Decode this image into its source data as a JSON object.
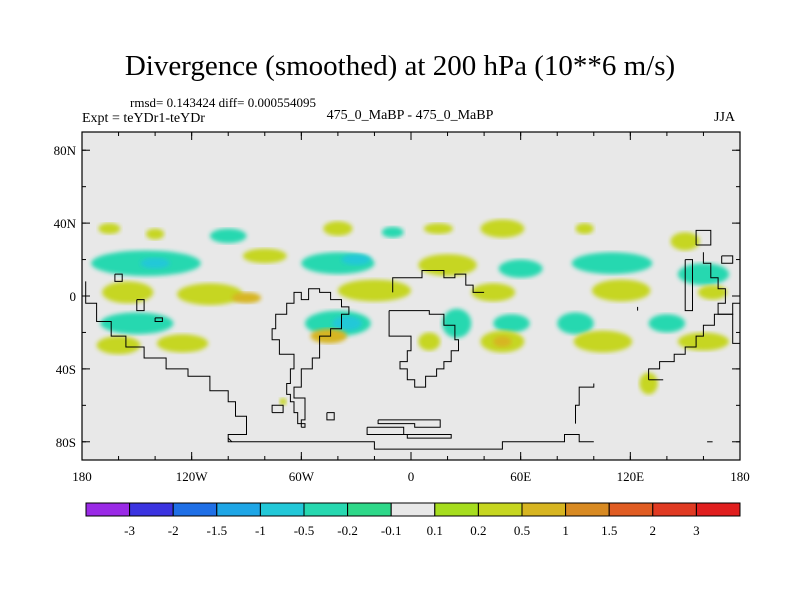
{
  "chart_data": {
    "type": "heatmap",
    "title": "Divergence (smoothed) at 200 hPa (10**6 m/s)",
    "stats": "rmsd= 0.143424  diff= 0.000554095",
    "experiment": "Expt = teYDr1-teYDr",
    "cases": "475_0_MaBP - 475_0_MaBP",
    "season": "JJA",
    "x_ticks": [
      "180",
      "120W",
      "60W",
      "0",
      "60E",
      "120E",
      "180"
    ],
    "y_ticks": [
      "80N",
      "40N",
      "0",
      "40S",
      "80S"
    ],
    "xlim": [
      -180,
      180
    ],
    "ylim": [
      -90,
      90
    ],
    "colorbar": {
      "labels": [
        "-3",
        "-2",
        "-1.5",
        "-1",
        "-0.5",
        "-0.2",
        "-0.1",
        "0.1",
        "0.2",
        "0.5",
        "1",
        "1.5",
        "2",
        "3"
      ],
      "colors": [
        "#9a2ae6",
        "#3b33e0",
        "#1f6fe6",
        "#1ea6e6",
        "#22c8d8",
        "#27d8b0",
        "#2ed889",
        "#e8e8e8",
        "#a6dd1e",
        "#c6d620",
        "#d7b521",
        "#d88a22",
        "#e05c22",
        "#e03a22",
        "#e01e1e"
      ]
    },
    "field_blobs": [
      {
        "lon": -165,
        "lat": 37,
        "rx": 6,
        "ry": 3,
        "level": "0.2"
      },
      {
        "lon": -140,
        "lat": 34,
        "rx": 5,
        "ry": 3,
        "level": "0.2"
      },
      {
        "lon": -100,
        "lat": 33,
        "rx": 10,
        "ry": 4,
        "level": "-0.2"
      },
      {
        "lon": -40,
        "lat": 37,
        "rx": 8,
        "ry": 4,
        "level": "0.2"
      },
      {
        "lon": -10,
        "lat": 35,
        "rx": 6,
        "ry": 3,
        "level": "-0.2"
      },
      {
        "lon": 15,
        "lat": 37,
        "rx": 8,
        "ry": 3,
        "level": "0.2"
      },
      {
        "lon": 50,
        "lat": 37,
        "rx": 12,
        "ry": 5,
        "level": "0.2"
      },
      {
        "lon": 95,
        "lat": 37,
        "rx": 5,
        "ry": 3,
        "level": "0.2"
      },
      {
        "lon": 150,
        "lat": 30,
        "rx": 8,
        "ry": 5,
        "level": "0.2"
      },
      {
        "lon": -145,
        "lat": 18,
        "rx": 30,
        "ry": 7,
        "level": "-0.2"
      },
      {
        "lon": -140,
        "lat": 18,
        "rx": 8,
        "ry": 3,
        "level": "-0.5"
      },
      {
        "lon": -80,
        "lat": 22,
        "rx": 12,
        "ry": 4,
        "level": "0.2"
      },
      {
        "lon": -40,
        "lat": 18,
        "rx": 20,
        "ry": 6,
        "level": "-0.2"
      },
      {
        "lon": -30,
        "lat": 20,
        "rx": 8,
        "ry": 3,
        "level": "-0.5"
      },
      {
        "lon": 20,
        "lat": 17,
        "rx": 16,
        "ry": 6,
        "level": "0.2"
      },
      {
        "lon": 60,
        "lat": 15,
        "rx": 12,
        "ry": 5,
        "level": "-0.2"
      },
      {
        "lon": 110,
        "lat": 18,
        "rx": 22,
        "ry": 6,
        "level": "-0.2"
      },
      {
        "lon": 160,
        "lat": 12,
        "rx": 14,
        "ry": 6,
        "level": "-0.2"
      },
      {
        "lon": -155,
        "lat": 2,
        "rx": 14,
        "ry": 6,
        "level": "0.2"
      },
      {
        "lon": -110,
        "lat": 1,
        "rx": 18,
        "ry": 6,
        "level": "0.2"
      },
      {
        "lon": -90,
        "lat": -1,
        "rx": 8,
        "ry": 3,
        "level": "0.5"
      },
      {
        "lon": -20,
        "lat": 3,
        "rx": 20,
        "ry": 6,
        "level": "0.2"
      },
      {
        "lon": 45,
        "lat": 2,
        "rx": 12,
        "ry": 5,
        "level": "0.2"
      },
      {
        "lon": 115,
        "lat": 3,
        "rx": 16,
        "ry": 6,
        "level": "0.2"
      },
      {
        "lon": 165,
        "lat": 2,
        "rx": 8,
        "ry": 4,
        "level": "0.2"
      },
      {
        "lon": -150,
        "lat": -15,
        "rx": 20,
        "ry": 6,
        "level": "-0.2"
      },
      {
        "lon": -40,
        "lat": -15,
        "rx": 18,
        "ry": 7,
        "level": "-0.2"
      },
      {
        "lon": -35,
        "lat": -15,
        "rx": 8,
        "ry": 4,
        "level": "-0.5"
      },
      {
        "lon": 25,
        "lat": -15,
        "rx": 8,
        "ry": 8,
        "level": "-0.2"
      },
      {
        "lon": 55,
        "lat": -15,
        "rx": 10,
        "ry": 5,
        "level": "-0.2"
      },
      {
        "lon": 90,
        "lat": -15,
        "rx": 10,
        "ry": 6,
        "level": "-0.2"
      },
      {
        "lon": 140,
        "lat": -15,
        "rx": 10,
        "ry": 5,
        "level": "-0.2"
      },
      {
        "lon": -160,
        "lat": -27,
        "rx": 12,
        "ry": 5,
        "level": "0.2"
      },
      {
        "lon": -125,
        "lat": -26,
        "rx": 14,
        "ry": 5,
        "level": "0.2"
      },
      {
        "lon": -45,
        "lat": -22,
        "rx": 10,
        "ry": 4,
        "level": "0.5"
      },
      {
        "lon": 10,
        "lat": -25,
        "rx": 6,
        "ry": 5,
        "level": "0.2"
      },
      {
        "lon": 50,
        "lat": -25,
        "rx": 12,
        "ry": 6,
        "level": "0.2"
      },
      {
        "lon": 50,
        "lat": -25,
        "rx": 5,
        "ry": 3,
        "level": "0.5"
      },
      {
        "lon": 105,
        "lat": -25,
        "rx": 16,
        "ry": 6,
        "level": "0.2"
      },
      {
        "lon": 160,
        "lat": -25,
        "rx": 14,
        "ry": 5,
        "level": "0.2"
      },
      {
        "lon": 130,
        "lat": -48,
        "rx": 5,
        "ry": 6,
        "level": "0.2"
      },
      {
        "lon": -70,
        "lat": -58,
        "rx": 2,
        "ry": 2,
        "level": "0.2"
      }
    ],
    "coastlines": [
      [
        [
          -178,
          8
        ],
        [
          -178,
          -4
        ],
        [
          -172,
          -4
        ],
        [
          -172,
          -14
        ],
        [
          -164,
          -14
        ],
        [
          -164,
          -22
        ],
        [
          -156,
          -22
        ],
        [
          -156,
          -28
        ],
        [
          -146,
          -28
        ],
        [
          -146,
          -34
        ],
        [
          -134,
          -34
        ],
        [
          -134,
          -40
        ],
        [
          -122,
          -40
        ],
        [
          -122,
          -44
        ],
        [
          -110,
          -44
        ],
        [
          -110,
          -52
        ],
        [
          -100,
          -52
        ],
        [
          -100,
          -58
        ],
        [
          -96,
          -58
        ],
        [
          -96,
          -66
        ],
        [
          -90,
          -66
        ],
        [
          -90,
          -76
        ],
        [
          -100,
          -76
        ],
        [
          -100,
          -80
        ],
        [
          -20,
          -80
        ],
        [
          -20,
          -84
        ],
        [
          50,
          -84
        ],
        [
          50,
          -80
        ],
        [
          84,
          -80
        ],
        [
          84,
          -76
        ],
        [
          92,
          -76
        ],
        [
          92,
          -80
        ],
        [
          100,
          -80
        ]
      ],
      [
        [
          -100,
          -78
        ],
        [
          -98,
          -80
        ]
      ],
      [
        [
          -60,
          -72
        ],
        [
          -60,
          -68
        ],
        [
          -58,
          -68
        ],
        [
          -58,
          -56
        ],
        [
          -64,
          -56
        ],
        [
          -64,
          -50
        ],
        [
          -60,
          -50
        ],
        [
          -60,
          -40
        ],
        [
          -54,
          -40
        ],
        [
          -54,
          -34
        ],
        [
          -50,
          -34
        ],
        [
          -50,
          -22
        ],
        [
          -44,
          -22
        ],
        [
          -44,
          -18
        ],
        [
          -38,
          -18
        ],
        [
          -38,
          -10
        ],
        [
          -34,
          -10
        ],
        [
          -34,
          -6
        ],
        [
          -38,
          -6
        ],
        [
          -38,
          -2
        ],
        [
          -44,
          -2
        ],
        [
          -44,
          2
        ],
        [
          -50,
          2
        ],
        [
          -50,
          4
        ],
        [
          -56,
          4
        ],
        [
          -56,
          -2
        ],
        [
          -60,
          -2
        ],
        [
          -60,
          2
        ],
        [
          -64,
          2
        ],
        [
          -64,
          -4
        ],
        [
          -68,
          -4
        ],
        [
          -68,
          -10
        ],
        [
          -74,
          -10
        ],
        [
          -74,
          -18
        ],
        [
          -76,
          -18
        ],
        [
          -76,
          -24
        ],
        [
          -72,
          -24
        ],
        [
          -72,
          -32
        ],
        [
          -64,
          -32
        ],
        [
          -64,
          -40
        ],
        [
          -66,
          -40
        ],
        [
          -66,
          -48
        ],
        [
          -68,
          -48
        ],
        [
          -68,
          -54
        ],
        [
          -66,
          -54
        ],
        [
          -66,
          -58
        ],
        [
          -64,
          -58
        ],
        [
          -64,
          -64
        ],
        [
          -62,
          -64
        ],
        [
          -62,
          -70
        ],
        [
          -58,
          -70
        ],
        [
          -58,
          -72
        ],
        [
          -60,
          -72
        ]
      ],
      [
        [
          -46,
          -64
        ],
        [
          -46,
          -68
        ],
        [
          -42,
          -68
        ],
        [
          -42,
          -64
        ],
        [
          -46,
          -64
        ]
      ],
      [
        [
          -76,
          -64
        ],
        [
          -76,
          -60
        ],
        [
          -70,
          -60
        ],
        [
          -70,
          -64
        ],
        [
          -76,
          -64
        ]
      ],
      [
        [
          -24,
          -72
        ],
        [
          -24,
          -76
        ],
        [
          -2,
          -76
        ],
        [
          -2,
          -78
        ],
        [
          22,
          -78
        ],
        [
          22,
          -76
        ],
        [
          -4,
          -76
        ],
        [
          -4,
          -72
        ],
        [
          -24,
          -72
        ]
      ],
      [
        [
          -18,
          -68
        ],
        [
          16,
          -68
        ],
        [
          16,
          -72
        ],
        [
          2,
          -72
        ],
        [
          2,
          -70
        ],
        [
          -18,
          -70
        ],
        [
          -18,
          -68
        ]
      ],
      [
        [
          -10,
          2
        ],
        [
          -10,
          10
        ],
        [
          6,
          10
        ],
        [
          6,
          14
        ],
        [
          18,
          14
        ],
        [
          18,
          10
        ],
        [
          24,
          10
        ],
        [
          24,
          12
        ],
        [
          30,
          12
        ],
        [
          30,
          6
        ],
        [
          34,
          6
        ],
        [
          34,
          2
        ],
        [
          40,
          2
        ]
      ],
      [
        [
          -12,
          -8
        ],
        [
          -12,
          -22
        ],
        [
          0,
          -22
        ],
        [
          0,
          -30
        ],
        [
          -2,
          -30
        ],
        [
          -2,
          -36
        ],
        [
          -6,
          -36
        ],
        [
          -6,
          -40
        ],
        [
          -2,
          -40
        ],
        [
          -2,
          -46
        ],
        [
          2,
          -46
        ],
        [
          2,
          -50
        ],
        [
          8,
          -50
        ],
        [
          8,
          -44
        ],
        [
          14,
          -44
        ],
        [
          14,
          -40
        ],
        [
          18,
          -40
        ],
        [
          18,
          -36
        ],
        [
          22,
          -36
        ],
        [
          22,
          -30
        ],
        [
          26,
          -30
        ],
        [
          26,
          -24
        ],
        [
          24,
          -24
        ],
        [
          24,
          -16
        ],
        [
          18,
          -16
        ],
        [
          18,
          -10
        ],
        [
          10,
          -10
        ],
        [
          10,
          -8
        ],
        [
          -12,
          -8
        ]
      ],
      [
        [
          -162,
          12
        ],
        [
          -162,
          8
        ],
        [
          -158,
          8
        ],
        [
          -158,
          12
        ],
        [
          -162,
          12
        ]
      ],
      [
        [
          -150,
          -2
        ],
        [
          -150,
          -8
        ],
        [
          -146,
          -8
        ],
        [
          -146,
          -2
        ],
        [
          -150,
          -2
        ]
      ],
      [
        [
          -140,
          -12
        ],
        [
          -140,
          -14
        ],
        [
          -136,
          -14
        ],
        [
          -136,
          -12
        ],
        [
          -140,
          -12
        ]
      ],
      [
        [
          90,
          -70
        ],
        [
          90,
          -60
        ],
        [
          92,
          -60
        ],
        [
          92,
          -50
        ],
        [
          100,
          -50
        ],
        [
          100,
          -48
        ]
      ],
      [
        [
          165,
          -80
        ],
        [
          162,
          -80
        ]
      ],
      [
        [
          130,
          -46
        ],
        [
          130,
          -40
        ],
        [
          136,
          -40
        ],
        [
          136,
          -36
        ],
        [
          144,
          -36
        ],
        [
          144,
          -32
        ],
        [
          150,
          -32
        ],
        [
          150,
          -28
        ],
        [
          156,
          -28
        ],
        [
          156,
          -22
        ],
        [
          160,
          -22
        ],
        [
          160,
          -16
        ],
        [
          166,
          -16
        ],
        [
          166,
          -10
        ],
        [
          176,
          -10
        ],
        [
          176,
          -4
        ],
        [
          180,
          -4
        ]
      ],
      [
        [
          130,
          -46
        ],
        [
          138,
          -46
        ]
      ],
      [
        [
          156,
          28
        ],
        [
          156,
          36
        ],
        [
          164,
          36
        ],
        [
          164,
          28
        ],
        [
          156,
          28
        ]
      ],
      [
        [
          160,
          24
        ],
        [
          160,
          18
        ],
        [
          164,
          18
        ],
        [
          164,
          10
        ],
        [
          168,
          10
        ],
        [
          168,
          4
        ],
        [
          172,
          4
        ],
        [
          172,
          -4
        ],
        [
          168,
          -4
        ],
        [
          168,
          -10
        ],
        [
          176,
          -10
        ],
        [
          176,
          -26
        ],
        [
          180,
          -26
        ]
      ],
      [
        [
          150,
          20
        ],
        [
          154,
          20
        ],
        [
          154,
          -8
        ],
        [
          150,
          -8
        ],
        [
          150,
          20
        ]
      ],
      [
        [
          124,
          -6
        ],
        [
          124,
          -8
        ]
      ],
      [
        [
          170,
          22
        ],
        [
          176,
          22
        ],
        [
          176,
          18
        ],
        [
          170,
          18
        ],
        [
          170,
          22
        ]
      ]
    ]
  }
}
